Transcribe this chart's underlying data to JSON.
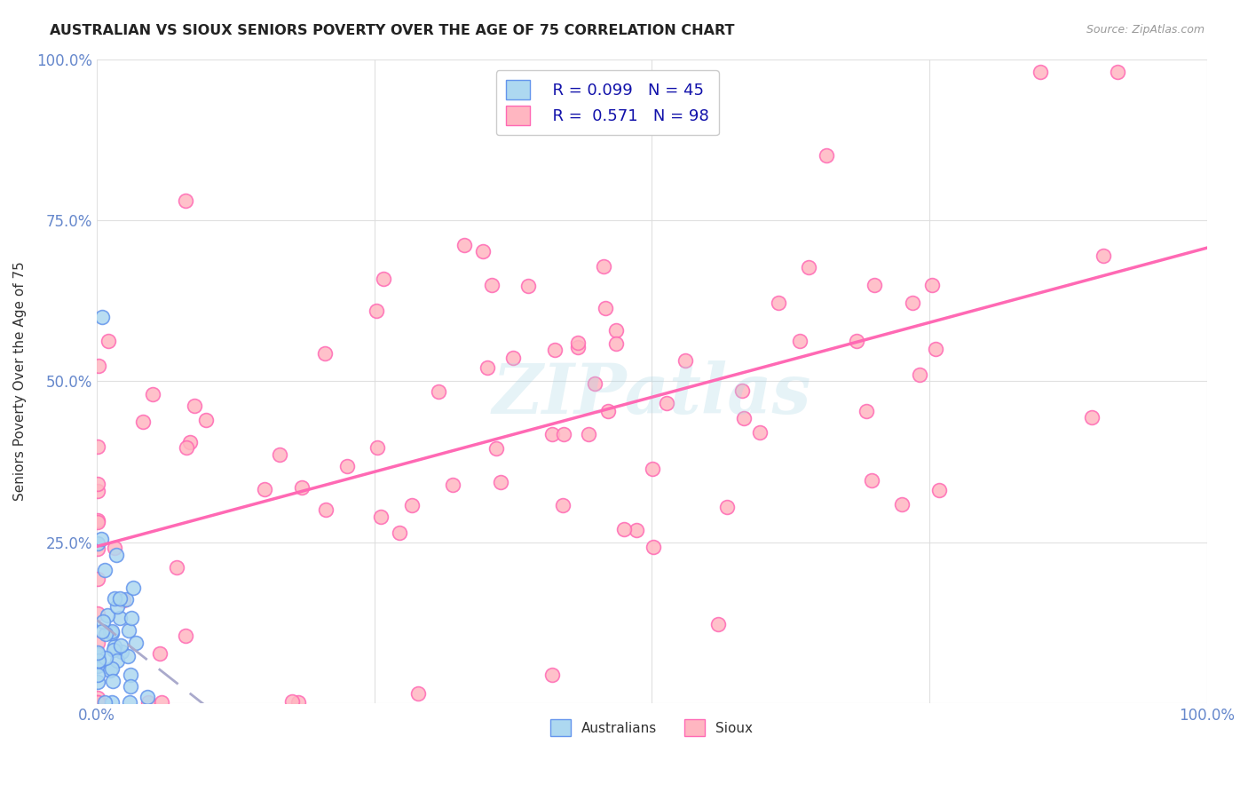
{
  "title": "AUSTRALIAN VS SIOUX SENIORS POVERTY OVER THE AGE OF 75 CORRELATION CHART",
  "source": "Source: ZipAtlas.com",
  "ylabel": "Seniors Poverty Over the Age of 75",
  "legend_australian": "Australians",
  "legend_sioux": "Sioux",
  "R_australian": 0.099,
  "N_australian": 45,
  "R_sioux": 0.571,
  "N_sioux": 98,
  "color_australian_fill": "#ADD8F0",
  "color_australian_edge": "#6495ED",
  "color_sioux_fill": "#FFB6C1",
  "color_sioux_edge": "#FF69B4",
  "color_trendline_australian": "#AAAACC",
  "color_trendline_sioux": "#FF69B4",
  "watermark": "ZIPatlas",
  "bg_color": "#FFFFFF",
  "grid_color": "#DDDDDD",
  "tick_color": "#6688CC",
  "title_color": "#222222",
  "source_color": "#999999"
}
